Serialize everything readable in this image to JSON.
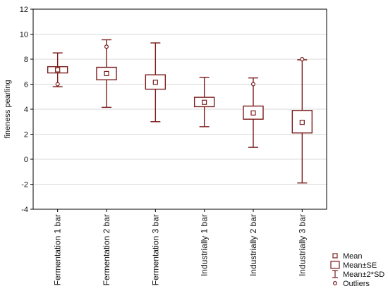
{
  "chart_data": {
    "type": "boxplot",
    "ylabel": "fineness pearling",
    "xlabel": "",
    "ylim": [
      -4,
      12
    ],
    "yticks": [
      -4,
      -2,
      0,
      2,
      4,
      6,
      8,
      10,
      12
    ],
    "grid": true,
    "legend_position": "bottom-right",
    "categories": [
      "Fermentation 1 bar",
      "Fermentation 2 bar",
      "Fermentation 3 bar",
      "Industrially 1 bar",
      "Industrially 2 bar",
      "Industrially 3 bar"
    ],
    "mean": [
      7.15,
      6.85,
      6.15,
      4.55,
      3.7,
      2.95
    ],
    "se_low": [
      6.9,
      6.35,
      5.6,
      4.2,
      3.2,
      2.1
    ],
    "se_high": [
      7.4,
      7.35,
      6.75,
      4.95,
      4.25,
      3.9
    ],
    "sd2_low": [
      5.8,
      4.15,
      3.0,
      2.6,
      0.95,
      -1.9
    ],
    "sd2_high": [
      8.5,
      9.55,
      9.3,
      6.55,
      6.5,
      7.95
    ],
    "outliers": [
      [
        6.0
      ],
      [
        9.0
      ],
      [],
      [],
      [
        6.0
      ],
      [
        8.0
      ]
    ],
    "colors": {
      "series": "#7b1c1c",
      "grid": "#d9d9d9",
      "axis": "#000000"
    },
    "legend": [
      "Mean",
      "Mean±SE",
      "Mean±2*SD",
      "Outliers"
    ]
  }
}
